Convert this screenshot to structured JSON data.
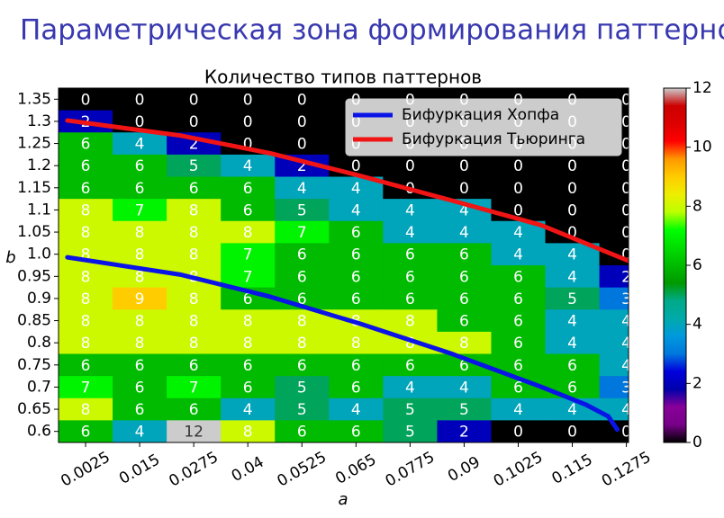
{
  "header": {
    "title": "Параметрическая зона формирования паттернов"
  },
  "chart_data": {
    "type": "heatmap",
    "title": "Количество типов паттернов",
    "x_label": "a",
    "y_label": "b",
    "x": [
      0.0025,
      0.015,
      0.0275,
      0.04,
      0.0525,
      0.065,
      0.0775,
      0.09,
      0.1025,
      0.115,
      0.1275
    ],
    "y": [
      1.35,
      1.3,
      1.25,
      1.2,
      1.15,
      1.1,
      1.05,
      1.0,
      0.95,
      0.9,
      0.85,
      0.8,
      0.75,
      0.7,
      0.65,
      0.6
    ],
    "values": [
      [
        0,
        0,
        0,
        0,
        0,
        0,
        0,
        0,
        0,
        0,
        0
      ],
      [
        2,
        0,
        0,
        0,
        0,
        0,
        0,
        0,
        0,
        0,
        0
      ],
      [
        6,
        4,
        2,
        0,
        0,
        0,
        0,
        0,
        0,
        0,
        0
      ],
      [
        6,
        6,
        5,
        4,
        2,
        0,
        0,
        0,
        0,
        0,
        0
      ],
      [
        6,
        6,
        6,
        6,
        4,
        4,
        0,
        0,
        0,
        0,
        0
      ],
      [
        8,
        7,
        8,
        6,
        5,
        4,
        4,
        4,
        0,
        0,
        0
      ],
      [
        8,
        8,
        8,
        8,
        7,
        6,
        4,
        4,
        4,
        0,
        0
      ],
      [
        8,
        8,
        8,
        7,
        6,
        6,
        6,
        6,
        4,
        4,
        0
      ],
      [
        8,
        8,
        8,
        7,
        6,
        6,
        6,
        6,
        6,
        4,
        2
      ],
      [
        8,
        9,
        8,
        6,
        6,
        6,
        6,
        6,
        6,
        5,
        3
      ],
      [
        8,
        8,
        8,
        8,
        8,
        8,
        8,
        6,
        6,
        4,
        4
      ],
      [
        8,
        8,
        8,
        8,
        8,
        8,
        8,
        8,
        6,
        4,
        4
      ],
      [
        6,
        6,
        6,
        6,
        6,
        6,
        6,
        6,
        6,
        6,
        4
      ],
      [
        7,
        6,
        7,
        6,
        5,
        6,
        4,
        4,
        6,
        6,
        3
      ],
      [
        8,
        6,
        6,
        4,
        5,
        4,
        5,
        5,
        4,
        4,
        4
      ],
      [
        6,
        4,
        12,
        8,
        6,
        6,
        5,
        2,
        0,
        0,
        0
      ]
    ],
    "xlim": [
      -0.00375,
      0.128
    ],
    "ylim": [
      0.575,
      1.375
    ],
    "xticks": [
      0.0025,
      0.015,
      0.0275,
      0.04,
      0.0525,
      0.065,
      0.0775,
      0.09,
      0.1025,
      0.115,
      0.1275
    ],
    "yticks": [
      1.35,
      1.3,
      1.25,
      1.2,
      1.15,
      1.1,
      1.05,
      {
        "value": 1,
        "label": "1.0"
      },
      0.95,
      0.9,
      0.85,
      0.8,
      0.75,
      0.7,
      0.65,
      0.6
    ],
    "clim": [
      0,
      12
    ],
    "cticks": [
      0,
      2,
      4,
      6,
      8,
      10,
      12
    ],
    "colorscale": [
      {
        "value": 0,
        "color": "#000000"
      },
      {
        "value": 0.6,
        "color": "#770088"
      },
      {
        "value": 1.2,
        "color": "#880099"
      },
      {
        "value": 1.8,
        "color": "#0000aa"
      },
      {
        "value": 2.4,
        "color": "#0000dd"
      },
      {
        "value": 3,
        "color": "#0077dd"
      },
      {
        "value": 3.6,
        "color": "#0099dd"
      },
      {
        "value": 4.2,
        "color": "#00aaaa"
      },
      {
        "value": 4.8,
        "color": "#00aa88"
      },
      {
        "value": 5.4,
        "color": "#009900"
      },
      {
        "value": 6,
        "color": "#00bb00"
      },
      {
        "value": 6.6,
        "color": "#00dd00"
      },
      {
        "value": 7.2,
        "color": "#00ff00"
      },
      {
        "value": 7.8,
        "color": "#bbff00"
      },
      {
        "value": 8.4,
        "color": "#eeee00"
      },
      {
        "value": 9,
        "color": "#ffcc00"
      },
      {
        "value": 9.6,
        "color": "#ff9900"
      },
      {
        "value": 10.2,
        "color": "#ff0000"
      },
      {
        "value": 10.8,
        "color": "#dd0000"
      },
      {
        "value": 11.4,
        "color": "#cc0000"
      },
      {
        "value": 12,
        "color": "#cccccc"
      }
    ],
    "legend": "upper right",
    "series": [
      {
        "name": "Бифуркация Хопфа",
        "color": "#0a14e6",
        "x": [
          -0.0017,
          0.0244,
          0.0452,
          0.066,
          0.0869,
          0.1077,
          0.118,
          0.1233,
          0.1254
        ],
        "y": [
          0.993,
          0.954,
          0.904,
          0.843,
          0.776,
          0.701,
          0.661,
          0.634,
          0.604
        ]
      },
      {
        "name": "Бифуркация Тьюринга",
        "color": "#f01414",
        "x": [
          -0.0017,
          0.0244,
          0.0452,
          0.066,
          0.0869,
          0.1077,
          0.128
        ],
        "y": [
          1.302,
          1.268,
          1.228,
          1.177,
          1.122,
          1.066,
          0.985
        ]
      }
    ]
  }
}
